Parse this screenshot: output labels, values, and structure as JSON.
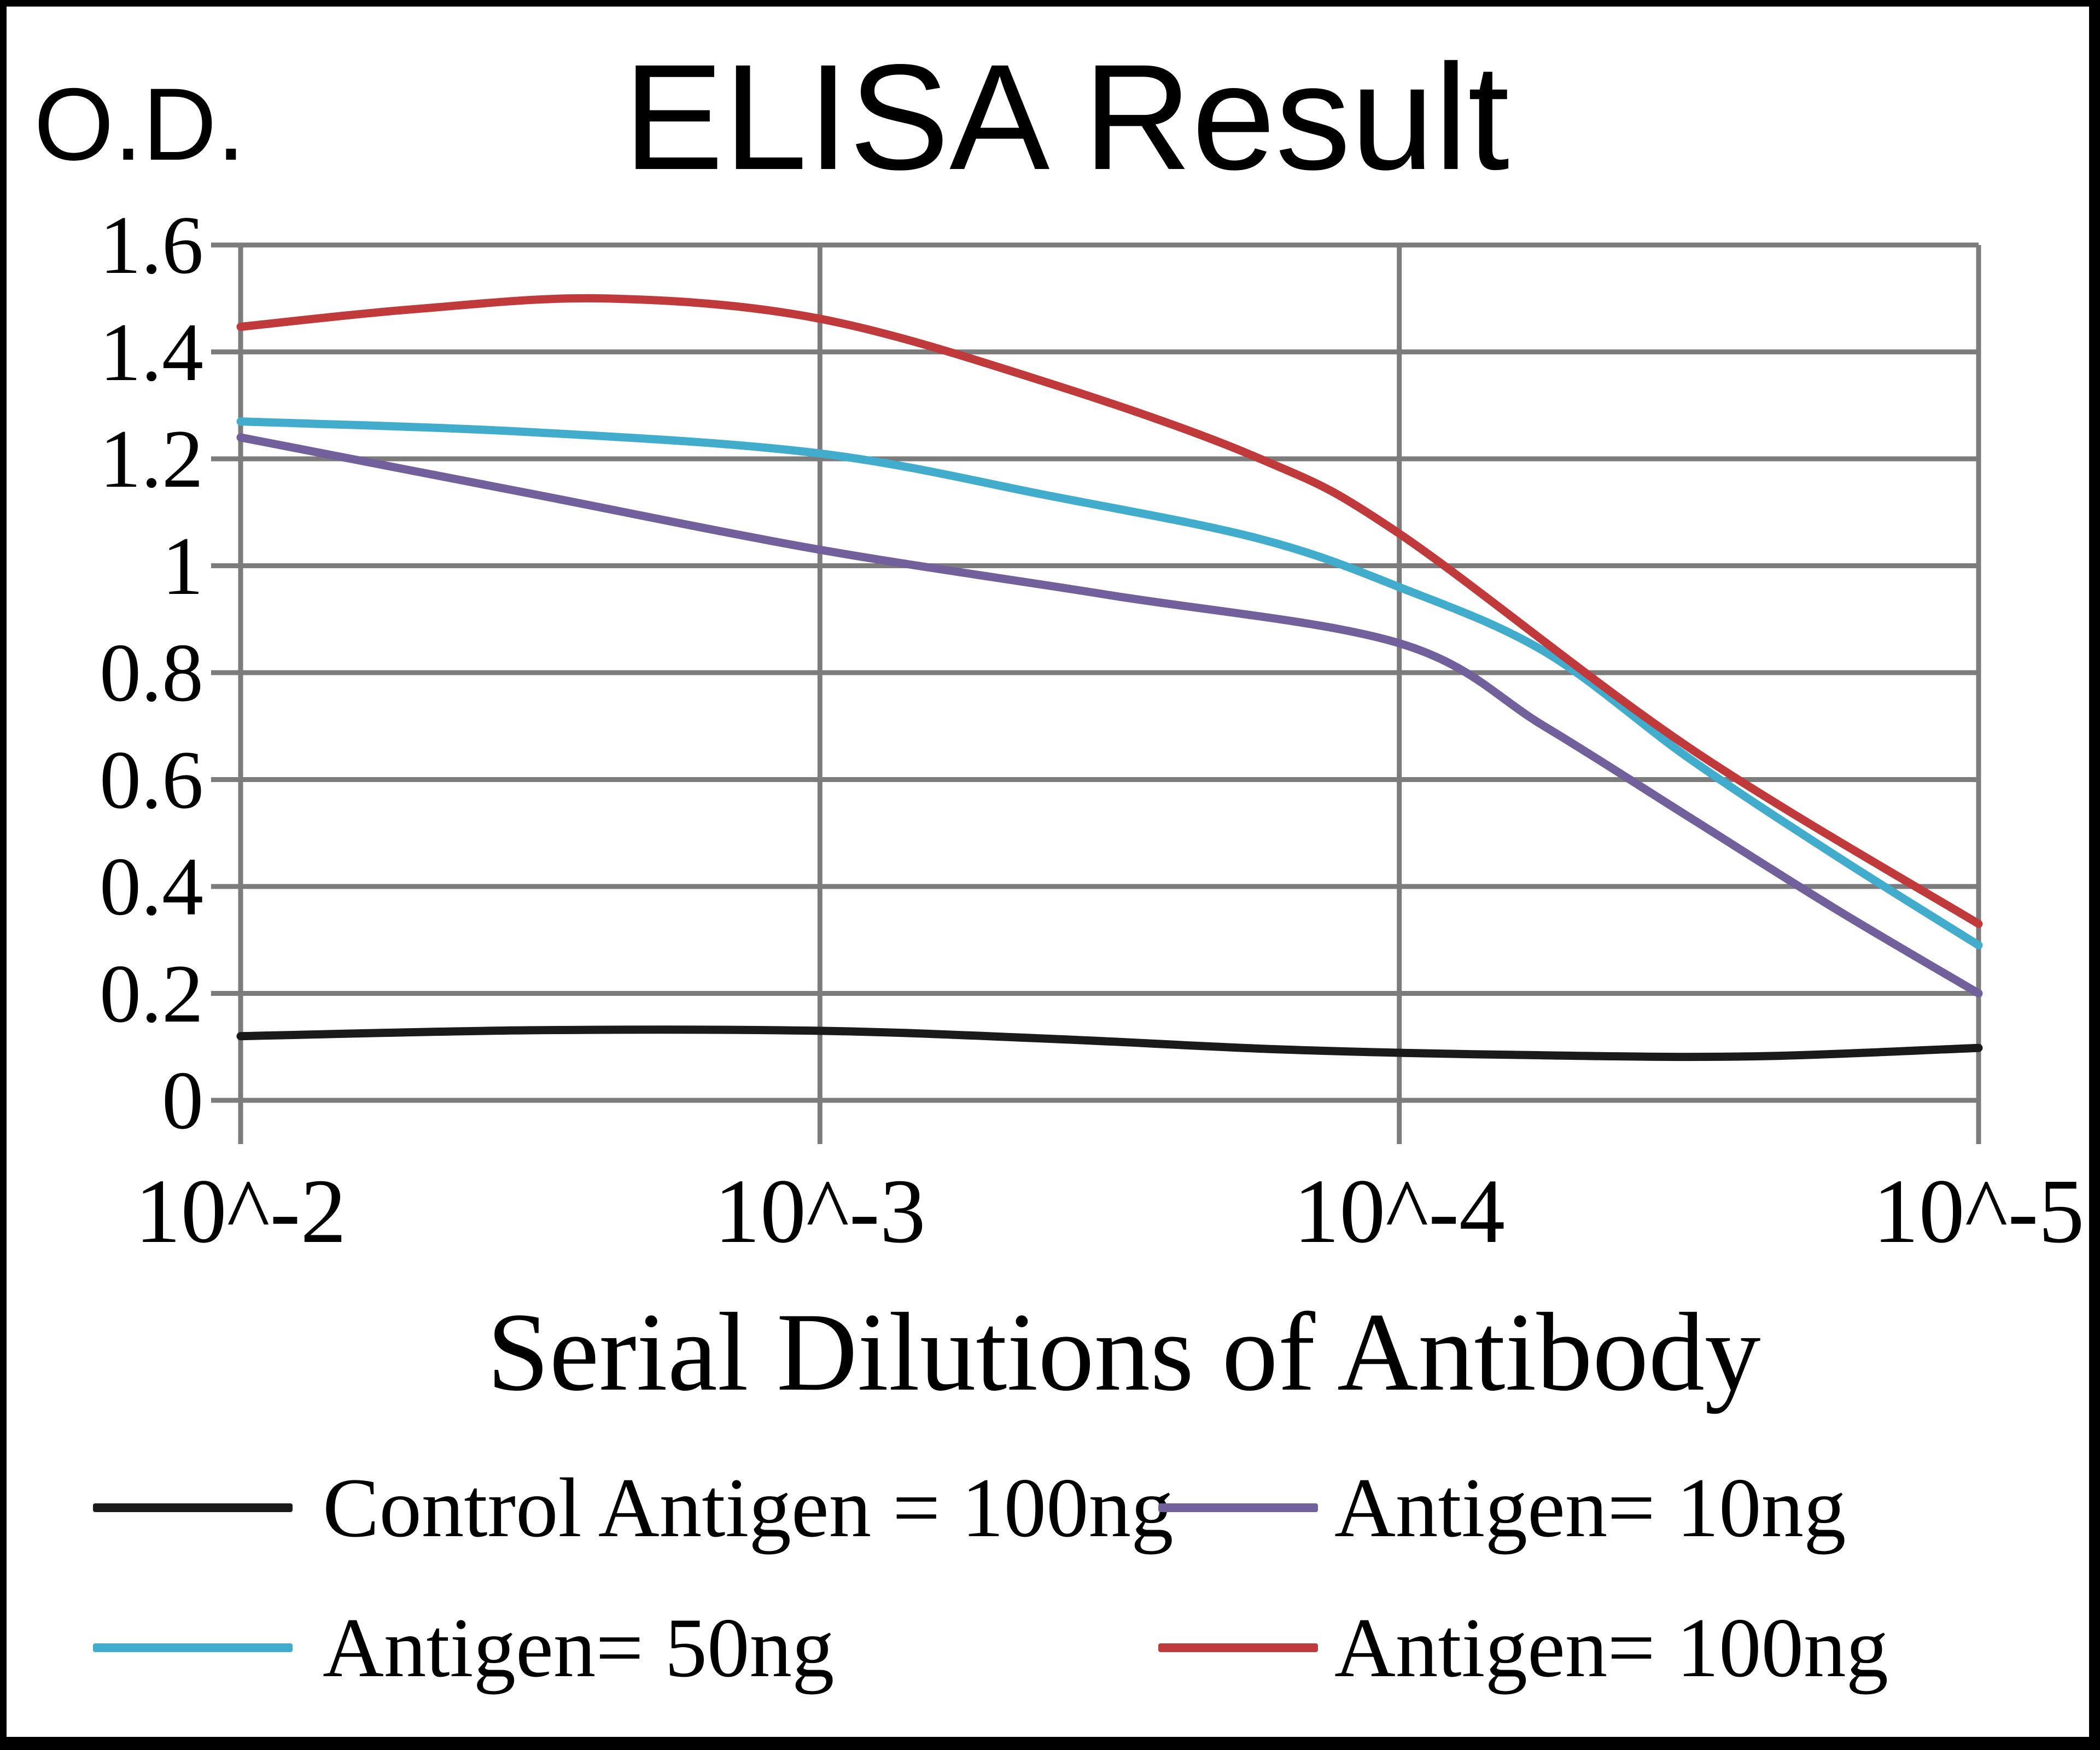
{
  "figure": {
    "background": "#ffffff",
    "border_color": "#000000",
    "grid_color": "#7c7c7c",
    "text_color": "#000000"
  },
  "chart_data": {
    "type": "line",
    "title": "ELISA Result",
    "ylabel": "O.D.",
    "xlabel": "Serial Dilutions of Antibody",
    "categories": [
      "10^-2",
      "10^-3",
      "10^-4",
      "10^-5"
    ],
    "y_ticklabels": [
      "0",
      "0.2",
      "0.4",
      "0.6",
      "0.8",
      "1",
      "1.2",
      "1.4",
      "1.6"
    ],
    "ylim": [
      0,
      1.6
    ],
    "grid": true,
    "legend_position": "bottom",
    "series": [
      {
        "name": "Control Antigen = 100ng",
        "color": "#1a1a1a",
        "values": [
          0.12,
          0.13,
          0.09,
          0.1
        ],
        "curve_x": [
          0,
          0.5,
          1,
          1.4,
          1.8,
          2.2,
          2.6,
          3
        ],
        "curve_y": [
          0.12,
          0.131,
          0.13,
          0.115,
          0.095,
          0.085,
          0.082,
          0.098
        ]
      },
      {
        "name": "Antigen= 10ng",
        "color": "#71609b",
        "values": [
          1.24,
          1.03,
          0.85,
          0.2
        ],
        "curve_x": [
          0,
          0.5,
          1,
          1.5,
          2,
          2.25,
          2.5,
          2.75,
          3
        ],
        "curve_y": [
          1.24,
          1.135,
          1.03,
          0.945,
          0.855,
          0.7,
          0.53,
          0.36,
          0.2
        ]
      },
      {
        "name": "Antigen= 50ng",
        "color": "#41accc",
        "values": [
          1.27,
          1.21,
          0.96,
          0.29
        ],
        "curve_x": [
          0,
          0.5,
          1,
          1.4,
          1.76,
          2,
          2.25,
          2.5,
          2.75,
          3
        ],
        "curve_y": [
          1.27,
          1.25,
          1.21,
          1.13,
          1.05,
          0.96,
          0.84,
          0.64,
          0.46,
          0.29
        ]
      },
      {
        "name": "Antigen= 100ng",
        "color": "#c03a3c",
        "values": [
          1.45,
          1.46,
          1.06,
          0.33
        ],
        "curve_x": [
          0,
          0.3,
          0.63,
          1,
          1.4,
          1.76,
          2,
          2.5,
          3
        ],
        "curve_y": [
          1.447,
          1.48,
          1.5,
          1.462,
          1.34,
          1.2,
          1.06,
          0.66,
          0.33
        ]
      }
    ]
  }
}
